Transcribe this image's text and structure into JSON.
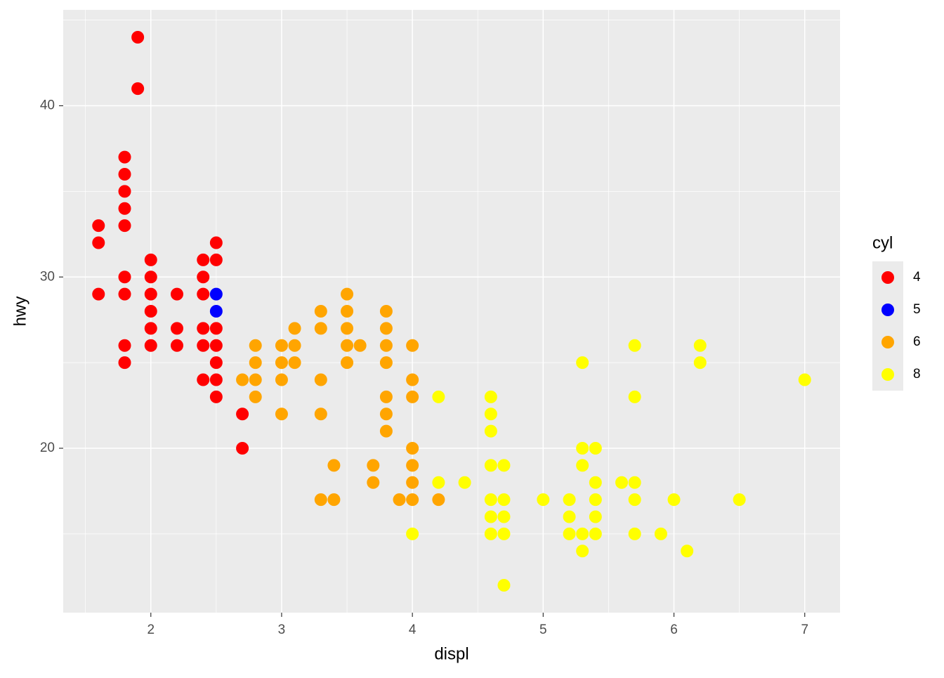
{
  "chart_data": {
    "type": "scatter",
    "x_label": "displ",
    "y_label": "hwy",
    "legend_title": "cyl",
    "xlim": [
      1.33,
      7.27
    ],
    "ylim": [
      10.4,
      45.6
    ],
    "xticks": [
      2,
      3,
      4,
      5,
      6,
      7
    ],
    "yticks": [
      20,
      30,
      40
    ],
    "x_minor_breaks": [
      1.5,
      2.5,
      3.5,
      4.5,
      5.5,
      6.5
    ],
    "y_minor_breaks": [
      15,
      25,
      35,
      45
    ],
    "grid": true,
    "legend_position": "right",
    "series": [
      {
        "name": "4",
        "color": "#ff0000",
        "x": [
          1.6,
          1.6,
          1.6,
          1.8,
          1.8,
          1.8,
          1.8,
          1.8,
          1.8,
          1.8,
          1.8,
          1.8,
          1.9,
          1.9,
          2.0,
          2.0,
          2.0,
          2.0,
          2.0,
          2.0,
          2.2,
          2.2,
          2.2,
          2.4,
          2.4,
          2.4,
          2.4,
          2.4,
          2.4,
          2.5,
          2.5,
          2.5,
          2.5,
          2.5,
          2.5,
          2.5,
          2.7,
          2.7
        ],
        "values": [
          33,
          32,
          29,
          37,
          36,
          35,
          34,
          33,
          30,
          29,
          26,
          25,
          44,
          41,
          31,
          30,
          29,
          28,
          27,
          26,
          29,
          27,
          26,
          31,
          30,
          29,
          27,
          26,
          24,
          32,
          31,
          27,
          26,
          25,
          24,
          23,
          22,
          20
        ]
      },
      {
        "name": "5",
        "color": "#0000ff",
        "x": [
          2.5,
          2.5
        ],
        "values": [
          29,
          28
        ]
      },
      {
        "name": "6",
        "color": "#ffa500",
        "x": [
          2.7,
          2.8,
          2.8,
          2.8,
          2.8,
          3.0,
          3.0,
          3.0,
          3.0,
          3.1,
          3.1,
          3.1,
          3.3,
          3.3,
          3.3,
          3.3,
          3.3,
          3.4,
          3.4,
          3.5,
          3.5,
          3.5,
          3.5,
          3.5,
          3.6,
          3.7,
          3.7,
          3.8,
          3.8,
          3.8,
          3.8,
          3.8,
          3.8,
          3.8,
          3.9,
          4.0,
          4.0,
          4.0,
          4.0,
          4.0,
          4.0,
          4.0,
          4.2
        ],
        "values": [
          24,
          26,
          25,
          24,
          23,
          26,
          25,
          24,
          22,
          27,
          26,
          25,
          28,
          27,
          24,
          22,
          17,
          19,
          17,
          29,
          28,
          27,
          26,
          25,
          26,
          19,
          18,
          28,
          27,
          26,
          25,
          23,
          22,
          21,
          17,
          26,
          24,
          23,
          20,
          19,
          18,
          17,
          17
        ]
      },
      {
        "name": "8",
        "color": "#ffff00",
        "x": [
          4.0,
          4.2,
          4.2,
          4.4,
          4.6,
          4.6,
          4.6,
          4.6,
          4.6,
          4.6,
          4.6,
          4.7,
          4.7,
          4.7,
          4.7,
          4.7,
          5.0,
          5.2,
          5.2,
          5.2,
          5.3,
          5.3,
          5.3,
          5.3,
          5.3,
          5.4,
          5.4,
          5.4,
          5.4,
          5.4,
          5.6,
          5.7,
          5.7,
          5.7,
          5.7,
          5.7,
          5.9,
          6.0,
          6.1,
          6.2,
          6.2,
          6.5,
          7.0
        ],
        "values": [
          15,
          23,
          18,
          18,
          23,
          22,
          21,
          19,
          17,
          16,
          15,
          19,
          17,
          16,
          15,
          12,
          17,
          17,
          16,
          15,
          25,
          20,
          19,
          15,
          14,
          20,
          18,
          17,
          16,
          15,
          18,
          26,
          23,
          18,
          17,
          15,
          15,
          17,
          14,
          26,
          25,
          17,
          24
        ]
      }
    ]
  }
}
